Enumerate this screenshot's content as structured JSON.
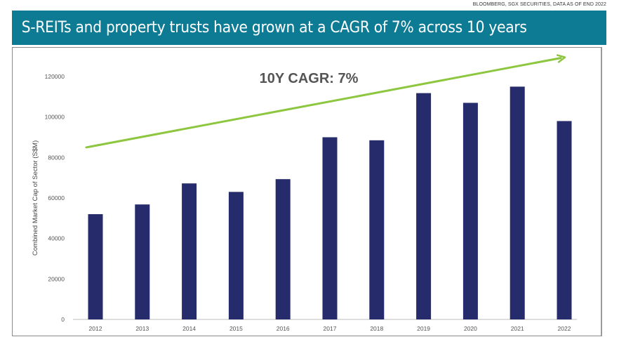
{
  "source_note": "BLOOMBERG, SGX SECURITIES, DATA AS OF END 2022",
  "banner": {
    "title": "S-REITs and property trusts have grown at a CAGR of 7% across 10 years"
  },
  "colors": {
    "banner": "#0e7b95",
    "bar": "#252b6b",
    "trend_arrow": "#8dc63f"
  },
  "chart_data": {
    "type": "bar",
    "title": "S-REITs and property trusts have grown at a CAGR of 7% across 10 years",
    "xlabel": "",
    "ylabel": "Combined Market Cap of Sector (S$M)",
    "categories": [
      "2012",
      "2013",
      "2014",
      "2015",
      "2016",
      "2017",
      "2018",
      "2019",
      "2020",
      "2021",
      "2022"
    ],
    "values": [
      52000,
      56800,
      67200,
      63000,
      69300,
      90000,
      88500,
      111800,
      107000,
      115000,
      98000
    ],
    "ylim": [
      0,
      120000
    ],
    "yticks": [
      0,
      20000,
      40000,
      60000,
      80000,
      100000,
      120000
    ],
    "ytick_labels": [
      "0",
      "20000",
      "40000",
      "60000",
      "80000",
      "100000",
      "120000"
    ],
    "grid": false,
    "legend": "none",
    "annotations": [
      {
        "text": "10Y CAGR: 7%",
        "type": "label"
      },
      {
        "text": "",
        "type": "trend-arrow",
        "from": {
          "x": "2012",
          "y": 85000
        },
        "to": {
          "x": "2022+",
          "y": 129500
        }
      }
    ]
  }
}
